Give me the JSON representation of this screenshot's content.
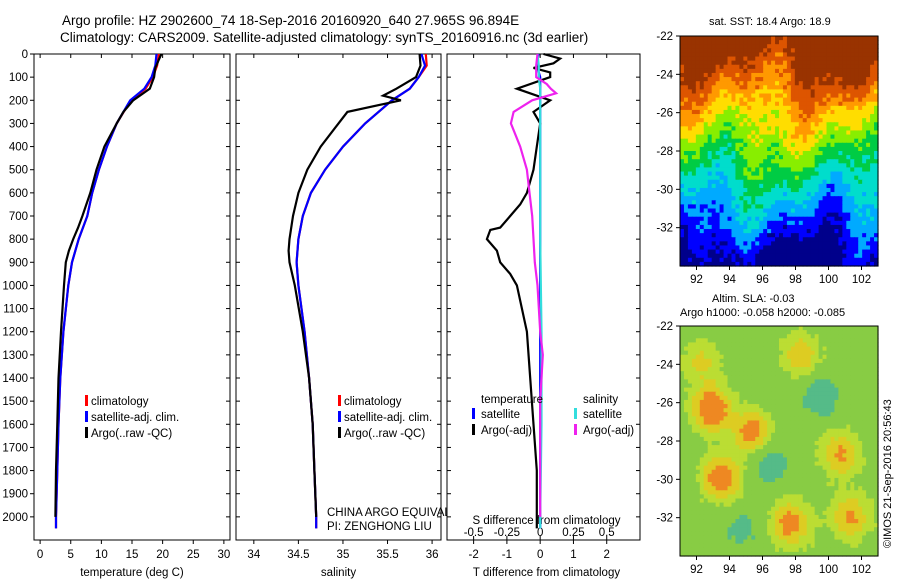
{
  "title": {
    "line1": "Argo profile: HZ 2902600_74 18-Sep-2016 20160920_640 27.965S 96.894E",
    "line2": "Climatology: CARS2009. Satellite-adjusted climatology: synTS_20160916.nc (3d earlier)"
  },
  "colors": {
    "climatology": "#ff0000",
    "satellite_adj": "#0000ff",
    "argo": "#000000",
    "salinity_satellite": "#33dddd",
    "salinity_argo": "#ee22ee"
  },
  "chart_data": [
    {
      "type": "line",
      "name": "temperature_profile",
      "xlabel": "temperature (deg C)",
      "ylabel": "",
      "xlim": [
        -1,
        31
      ],
      "ylim": [
        2100,
        0
      ],
      "xticks": [
        0,
        5,
        10,
        15,
        20,
        25,
        30
      ],
      "yticks": [
        0,
        100,
        200,
        300,
        400,
        500,
        600,
        700,
        800,
        900,
        1000,
        1100,
        1200,
        1300,
        1400,
        1500,
        1600,
        1700,
        1800,
        1900,
        2000
      ],
      "legend": [
        "climatology",
        "satellite-adj. clim.",
        "Argo(..raw -QC)"
      ],
      "series": [
        {
          "name": "climatology",
          "color": "#ff0000",
          "depth": [
            0,
            50,
            100,
            150,
            200,
            300,
            400,
            500,
            600,
            700,
            800,
            900,
            1000,
            1200,
            1400,
            1600,
            1800,
            2000,
            2050
          ],
          "values": [
            19.4,
            19.1,
            18.4,
            17.2,
            14.8,
            12.5,
            10.9,
            9.6,
            8.5,
            7.7,
            6.3,
            5.2,
            4.6,
            3.8,
            3.3,
            3.0,
            2.8,
            2.6,
            2.6
          ]
        },
        {
          "name": "satellite-adj. clim.",
          "color": "#0000ff",
          "depth": [
            0,
            50,
            100,
            150,
            200,
            300,
            400,
            500,
            600,
            700,
            800,
            900,
            1000,
            1200,
            1400,
            1600,
            1800,
            2000,
            2050
          ],
          "values": [
            19.0,
            18.8,
            18.2,
            17.0,
            14.7,
            12.5,
            10.9,
            9.6,
            8.5,
            7.7,
            6.3,
            5.2,
            4.6,
            3.8,
            3.3,
            3.0,
            2.8,
            2.6,
            2.6
          ]
        },
        {
          "name": "Argo(..raw -QC)",
          "color": "#000000",
          "depth": [
            0,
            30,
            60,
            100,
            150,
            200,
            250,
            300,
            400,
            500,
            600,
            700,
            750,
            800,
            850,
            900,
            1000,
            1200,
            1400,
            1600,
            1800,
            2000
          ],
          "values": [
            19.8,
            19.3,
            18.8,
            18.6,
            17.9,
            15.2,
            13.6,
            12.5,
            10.5,
            9.2,
            8.2,
            6.9,
            6.2,
            5.4,
            4.7,
            4.2,
            3.9,
            3.4,
            3.0,
            2.8,
            2.6,
            2.5
          ]
        }
      ]
    },
    {
      "type": "line",
      "name": "salinity_profile",
      "xlabel": "salinity",
      "xlim": [
        33.8,
        36.1
      ],
      "ylim": [
        2100,
        0
      ],
      "xticks": [
        34,
        34.5,
        35,
        35.5,
        36
      ],
      "legend": [
        "climatology",
        "satellite-adj. clim.",
        "Argo(..raw -QC)"
      ],
      "annotation": [
        "CHINA ARGO EQUIVALENT",
        "PI: ZENGHONG LIU"
      ],
      "series": [
        {
          "name": "climatology",
          "color": "#ff0000",
          "depth": [
            0,
            50,
            100,
            150,
            200,
            300,
            400,
            500,
            600,
            700,
            800,
            900,
            1000,
            1200,
            1400,
            1600,
            1800,
            2000,
            2050
          ],
          "values": [
            35.93,
            35.94,
            35.85,
            35.75,
            35.55,
            35.25,
            35.0,
            34.8,
            34.64,
            34.55,
            34.5,
            34.48,
            34.5,
            34.57,
            34.62,
            34.66,
            34.68,
            34.7,
            34.7
          ]
        },
        {
          "name": "satellite-adj. clim.",
          "color": "#0000ff",
          "depth": [
            0,
            50,
            100,
            150,
            200,
            300,
            400,
            500,
            600,
            700,
            800,
            900,
            1000,
            1200,
            1400,
            1600,
            1800,
            2000,
            2050
          ],
          "values": [
            35.88,
            35.92,
            35.85,
            35.75,
            35.55,
            35.25,
            35.0,
            34.8,
            34.64,
            34.55,
            34.5,
            34.48,
            34.5,
            34.57,
            34.62,
            34.66,
            34.68,
            34.7,
            34.7
          ]
        },
        {
          "name": "Argo(..raw -QC)",
          "color": "#000000",
          "depth": [
            0,
            50,
            100,
            150,
            180,
            200,
            250,
            300,
            400,
            500,
            600,
            700,
            800,
            850,
            900,
            1000,
            1200,
            1400,
            1600,
            1800,
            2000
          ],
          "values": [
            35.86,
            35.87,
            35.82,
            35.6,
            35.45,
            35.65,
            35.05,
            34.95,
            34.75,
            34.6,
            34.5,
            34.44,
            34.4,
            34.39,
            34.4,
            34.46,
            34.55,
            34.62,
            34.66,
            34.68,
            34.7
          ]
        }
      ]
    },
    {
      "type": "line",
      "name": "difference_from_climatology",
      "xlabel": "T difference from climatology",
      "x2label": "S difference from climatology",
      "xlim": [
        -2.8,
        3.0
      ],
      "x2lim": [
        -0.7,
        0.75
      ],
      "ylim": [
        2100,
        0
      ],
      "xticks": [
        -2,
        -1,
        0,
        1,
        2
      ],
      "x2ticks": [
        -0.5,
        -0.25,
        0,
        0.25,
        0.5
      ],
      "x2ticklabels": [
        "-0.5",
        "-0.25",
        "0",
        "0.25",
        "0.5"
      ],
      "legend_temperature": {
        "title": "temperature",
        "items": [
          "satellite",
          "Argo(-adj)"
        ]
      },
      "legend_salinity": {
        "title": "salinity",
        "items": [
          "satellite",
          "Argo(-adj)"
        ]
      },
      "series": [
        {
          "name": "temperature satellite",
          "color": "#0000ff",
          "depth": [
            0,
            50,
            100,
            200,
            400,
            800,
            1200,
            1600,
            2000,
            2050
          ],
          "values": [
            -0.05,
            -0.1,
            0.0,
            0.0,
            0.0,
            0.0,
            0.0,
            0.0,
            0.0,
            0.0
          ]
        },
        {
          "name": "temperature Argo(-adj)",
          "color": "#000000",
          "depth": [
            0,
            20,
            40,
            60,
            80,
            100,
            150,
            200,
            250,
            300,
            400,
            500,
            600,
            650,
            700,
            750,
            760,
            800,
            850,
            900,
            950,
            1000,
            1200,
            1400,
            1600,
            1800,
            2000,
            2050
          ],
          "values": [
            0.1,
            0.6,
            0.4,
            -0.2,
            0.3,
            0.3,
            -0.7,
            0.3,
            -0.2,
            0.0,
            -0.1,
            -0.2,
            -0.4,
            -0.6,
            -0.9,
            -1.2,
            -1.5,
            -1.6,
            -1.3,
            -1.2,
            -0.9,
            -0.7,
            -0.4,
            -0.3,
            -0.2,
            -0.1,
            -0.1,
            -0.1
          ]
        },
        {
          "name": "salinity satellite",
          "color": "#33dddd",
          "depth": [
            0,
            50,
            100,
            150,
            200,
            400,
            800,
            1200,
            1600,
            2000,
            2050
          ],
          "values": [
            -0.02,
            -0.01,
            -0.01,
            0.0,
            0.0,
            0.0,
            0.0,
            0.01,
            0.01,
            0.0,
            0.0
          ]
        },
        {
          "name": "salinity Argo(-adj)",
          "color": "#ee22ee",
          "depth": [
            0,
            50,
            100,
            130,
            150,
            170,
            200,
            250,
            300,
            400,
            500,
            600,
            700,
            800,
            900,
            1000,
            1200,
            1300,
            1400,
            1500,
            1600,
            1800,
            2000
          ],
          "values": [
            -0.02,
            -0.03,
            -0.03,
            0.05,
            0.08,
            0.12,
            -0.06,
            -0.2,
            -0.22,
            -0.15,
            -0.1,
            -0.08,
            -0.06,
            -0.05,
            -0.04,
            -0.02,
            0.0,
            0.02,
            0.01,
            0.0,
            0.0,
            0.0,
            0.0
          ]
        }
      ]
    },
    {
      "type": "heatmap",
      "name": "sst_map",
      "title": "sat. SST: 18.4  Argo: 18.9",
      "xlim": [
        91,
        103
      ],
      "ylim": [
        -34,
        -22
      ],
      "xticks": [
        92,
        94,
        96,
        98,
        100,
        102
      ],
      "yticks": [
        -22,
        -24,
        -26,
        -28,
        -30,
        -32
      ],
      "colormap": [
        "#00008b",
        "#0000ff",
        "#00aaff",
        "#00ddcc",
        "#00cc44",
        "#88ee00",
        "#ffdd00",
        "#ff9900",
        "#dd5500",
        "#993300"
      ]
    },
    {
      "type": "heatmap",
      "name": "sla_map",
      "title": "Altim. SLA: -0.03",
      "subtitle": "Argo h1000: -0.058 h2000: -0.085",
      "xlim": [
        91,
        103
      ],
      "ylim": [
        -34,
        -22
      ],
      "xticks": [
        92,
        94,
        96,
        98,
        100,
        102
      ],
      "yticks": [
        -22,
        -24,
        -26,
        -28,
        -30,
        -32
      ]
    }
  ],
  "credit": "©IMOS 21-Sep-2016 20:56:43"
}
